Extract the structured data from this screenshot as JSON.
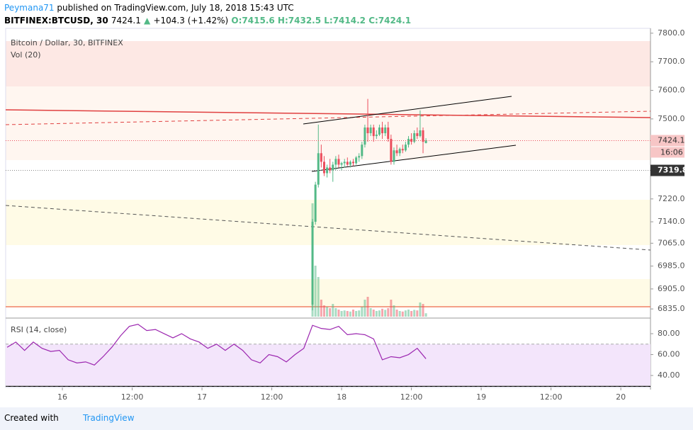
{
  "header": {
    "publisher": "Peymana71",
    "published": "published on TradingView.com, July 18, 2018 15:43 UTC",
    "symbol": "BITFINEX:BTCUSD, 30",
    "last": "7424.1",
    "change": "+104.3 (+1.42%)",
    "ohlc": [
      "O:7415.6",
      "H:7432.5",
      "L:7414.2",
      "C:7424.1"
    ]
  },
  "chart_data": {
    "type": "candlestick",
    "title": "Bitcoin / Dollar, 30, BITFINEX",
    "volume_title": "Vol (20)",
    "up_color": "#53b987",
    "down_color": "#eb4d5c",
    "ylim": [
      6808,
      7817
    ],
    "yticks": [
      {
        "value": 7800,
        "label": "7800.0"
      },
      {
        "value": 7700,
        "label": "7700.0"
      },
      {
        "value": 7600,
        "label": "7600.0"
      },
      {
        "value": 7500,
        "label": "7500.0"
      },
      {
        "value": 7220,
        "label": "7220.0"
      },
      {
        "value": 7140,
        "label": "7140.0"
      },
      {
        "value": 7065,
        "label": "7065.0"
      },
      {
        "value": 6985,
        "label": "6985.0"
      },
      {
        "value": 6905,
        "label": "6905.0"
      },
      {
        "value": 6835,
        "label": "6835.0"
      }
    ],
    "xlim": [
      -9.75,
      101.1
    ],
    "xticks": [
      {
        "value": 0,
        "label": "16"
      },
      {
        "value": 12,
        "label": "12:00"
      },
      {
        "value": 24,
        "label": "17"
      },
      {
        "value": 36,
        "label": "12:00"
      },
      {
        "value": 48,
        "label": "18"
      },
      {
        "value": 60,
        "label": "12:00"
      },
      {
        "value": 72,
        "label": "19"
      },
      {
        "value": 84,
        "label": "12:00"
      },
      {
        "value": 96,
        "label": "20"
      }
    ],
    "price_labels": [
      7424.1,
      7319.8
    ],
    "countdown": "16:06",
    "candles": [
      {
        "t": 43,
        "o": 6850,
        "h": 7150,
        "l": 6830,
        "c": 7140
      },
      {
        "t": 43.5,
        "o": 7140,
        "h": 7280,
        "l": 7130,
        "c": 7270
      },
      {
        "t": 44,
        "o": 7270,
        "h": 7480,
        "l": 7260,
        "c": 7380
      },
      {
        "t": 44.5,
        "o": 7380,
        "h": 7410,
        "l": 7330,
        "c": 7350
      },
      {
        "t": 45,
        "o": 7350,
        "h": 7370,
        "l": 7300,
        "c": 7310
      },
      {
        "t": 45.5,
        "o": 7310,
        "h": 7340,
        "l": 7295,
        "c": 7330
      },
      {
        "t": 46,
        "o": 7330,
        "h": 7360,
        "l": 7310,
        "c": 7320
      },
      {
        "t": 46.5,
        "o": 7320,
        "h": 7350,
        "l": 7280,
        "c": 7340
      },
      {
        "t": 47,
        "o": 7340,
        "h": 7370,
        "l": 7320,
        "c": 7360
      },
      {
        "t": 47.5,
        "o": 7360,
        "h": 7375,
        "l": 7330,
        "c": 7340
      },
      {
        "t": 48,
        "o": 7340,
        "h": 7350,
        "l": 7320,
        "c": 7345
      },
      {
        "t": 48.5,
        "o": 7345,
        "h": 7360,
        "l": 7330,
        "c": 7350
      },
      {
        "t": 49,
        "o": 7350,
        "h": 7365,
        "l": 7335,
        "c": 7340
      },
      {
        "t": 49.5,
        "o": 7340,
        "h": 7355,
        "l": 7330,
        "c": 7350
      },
      {
        "t": 50,
        "o": 7350,
        "h": 7360,
        "l": 7335,
        "c": 7345
      },
      {
        "t": 50.5,
        "o": 7345,
        "h": 7370,
        "l": 7340,
        "c": 7365
      },
      {
        "t": 51,
        "o": 7365,
        "h": 7380,
        "l": 7350,
        "c": 7370
      },
      {
        "t": 51.5,
        "o": 7370,
        "h": 7420,
        "l": 7360,
        "c": 7410
      },
      {
        "t": 52,
        "o": 7410,
        "h": 7480,
        "l": 7400,
        "c": 7470
      },
      {
        "t": 52.5,
        "o": 7470,
        "h": 7570,
        "l": 7420,
        "c": 7450
      },
      {
        "t": 53,
        "o": 7450,
        "h": 7480,
        "l": 7440,
        "c": 7470
      },
      {
        "t": 53.5,
        "o": 7470,
        "h": 7480,
        "l": 7420,
        "c": 7440
      },
      {
        "t": 54,
        "o": 7440,
        "h": 7460,
        "l": 7430,
        "c": 7445
      },
      {
        "t": 54.5,
        "o": 7445,
        "h": 7480,
        "l": 7440,
        "c": 7470
      },
      {
        "t": 55,
        "o": 7470,
        "h": 7490,
        "l": 7430,
        "c": 7450
      },
      {
        "t": 55.5,
        "o": 7450,
        "h": 7480,
        "l": 7440,
        "c": 7470
      },
      {
        "t": 56,
        "o": 7470,
        "h": 7490,
        "l": 7420,
        "c": 7430
      },
      {
        "t": 56.5,
        "o": 7430,
        "h": 7445,
        "l": 7340,
        "c": 7350
      },
      {
        "t": 57,
        "o": 7350,
        "h": 7400,
        "l": 7340,
        "c": 7390
      },
      {
        "t": 57.5,
        "o": 7390,
        "h": 7410,
        "l": 7370,
        "c": 7380
      },
      {
        "t": 58,
        "o": 7380,
        "h": 7400,
        "l": 7370,
        "c": 7395
      },
      {
        "t": 58.5,
        "o": 7395,
        "h": 7410,
        "l": 7380,
        "c": 7390
      },
      {
        "t": 59,
        "o": 7390,
        "h": 7420,
        "l": 7385,
        "c": 7410
      },
      {
        "t": 59.5,
        "o": 7410,
        "h": 7440,
        "l": 7400,
        "c": 7430
      },
      {
        "t": 60,
        "o": 7430,
        "h": 7450,
        "l": 7410,
        "c": 7420
      },
      {
        "t": 60.5,
        "o": 7420,
        "h": 7460,
        "l": 7415,
        "c": 7450
      },
      {
        "t": 61,
        "o": 7450,
        "h": 7470,
        "l": 7430,
        "c": 7440
      },
      {
        "t": 61.5,
        "o": 7440,
        "h": 7530,
        "l": 7435,
        "c": 7460
      },
      {
        "t": 62,
        "o": 7460,
        "h": 7470,
        "l": 7380,
        "c": 7420
      },
      {
        "t": 62.5,
        "o": 7415.6,
        "h": 7432.5,
        "l": 7414.2,
        "c": 7424.1
      }
    ],
    "volume": [
      400,
      180,
      140,
      60,
      40,
      35,
      30,
      45,
      30,
      25,
      20,
      22,
      20,
      18,
      25,
      20,
      22,
      35,
      60,
      70,
      30,
      25,
      20,
      22,
      28,
      24,
      30,
      60,
      40,
      25,
      20,
      18,
      22,
      25,
      20,
      24,
      22,
      50,
      45,
      12
    ],
    "volume_ylim": [
      0,
      250
    ],
    "rsi": {
      "title": "RSI (14, close)",
      "color": "#9c27b0",
      "ylim": [
        28.5,
        92.9
      ],
      "bands": [
        30,
        70
      ],
      "yticks": [
        {
          "value": 80,
          "label": "80.00"
        },
        {
          "value": 60,
          "label": "60.00"
        },
        {
          "value": 40,
          "label": "40.00"
        }
      ],
      "x": [
        -9.5,
        -8,
        -6.5,
        -5,
        -3.5,
        -2,
        -0.5,
        1,
        2.5,
        4,
        5.5,
        7,
        8.5,
        10,
        11.5,
        13,
        14.5,
        16,
        17.5,
        19,
        20.5,
        22,
        23.5,
        25,
        26.5,
        28,
        29.5,
        31,
        32.5,
        34,
        35.5,
        37,
        38.5,
        40,
        41.5,
        43,
        44.5,
        46,
        47.5,
        49,
        50.5,
        52,
        53.5,
        55,
        56.5,
        58,
        59.5,
        61,
        62.5
      ],
      "values": [
        67,
        72,
        64,
        72,
        66,
        63,
        64,
        55,
        52,
        53,
        50,
        58,
        67,
        78,
        87,
        89,
        83,
        84,
        80,
        76,
        80,
        75,
        72,
        66,
        70,
        64,
        70,
        64,
        55,
        52,
        60,
        58,
        53,
        60,
        66,
        88,
        85,
        84,
        87,
        79,
        80,
        79,
        75,
        55,
        58,
        57,
        60,
        66,
        56
      ]
    }
  },
  "footer": {
    "created": "Created with",
    "brand": "TradingView"
  }
}
